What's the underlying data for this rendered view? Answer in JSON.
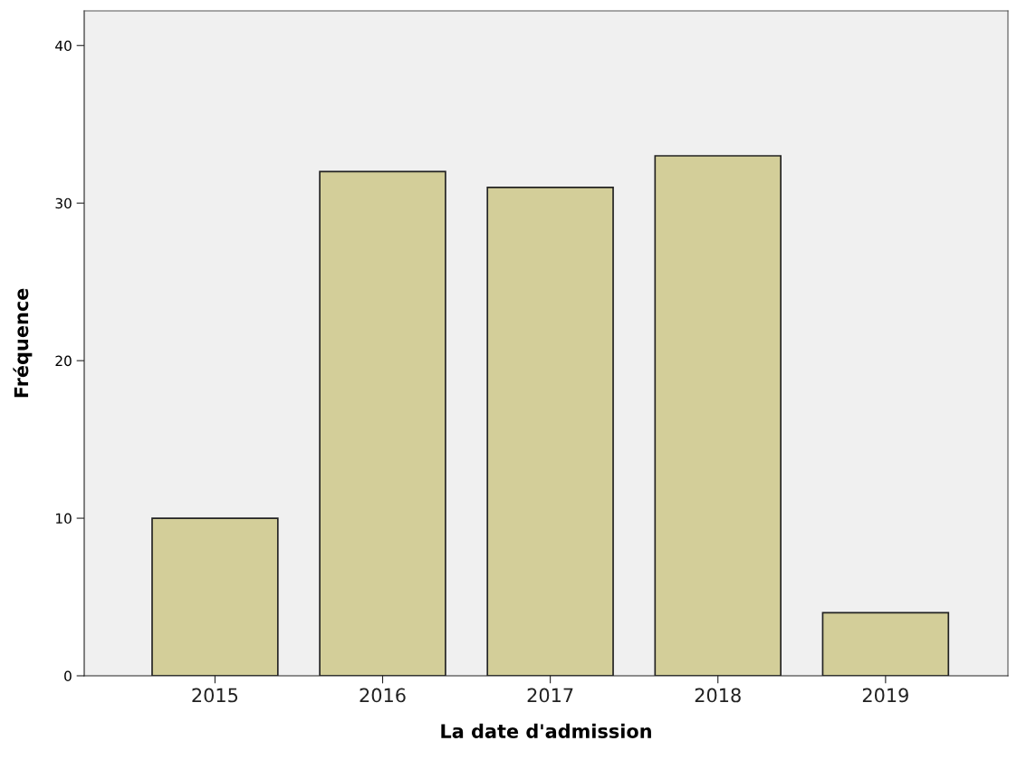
{
  "chart_data": {
    "type": "bar",
    "xlabel": "La date d'admission",
    "ylabel": "Fréquence",
    "categories": [
      "2015",
      "2016",
      "2017",
      "2018",
      "2019"
    ],
    "values": [
      10,
      32,
      31,
      33,
      4
    ],
    "color": "#d3ce99",
    "ylim": [
      0,
      42.2
    ],
    "yticks": [
      0,
      10,
      20,
      30,
      40
    ],
    "grid": false
  }
}
